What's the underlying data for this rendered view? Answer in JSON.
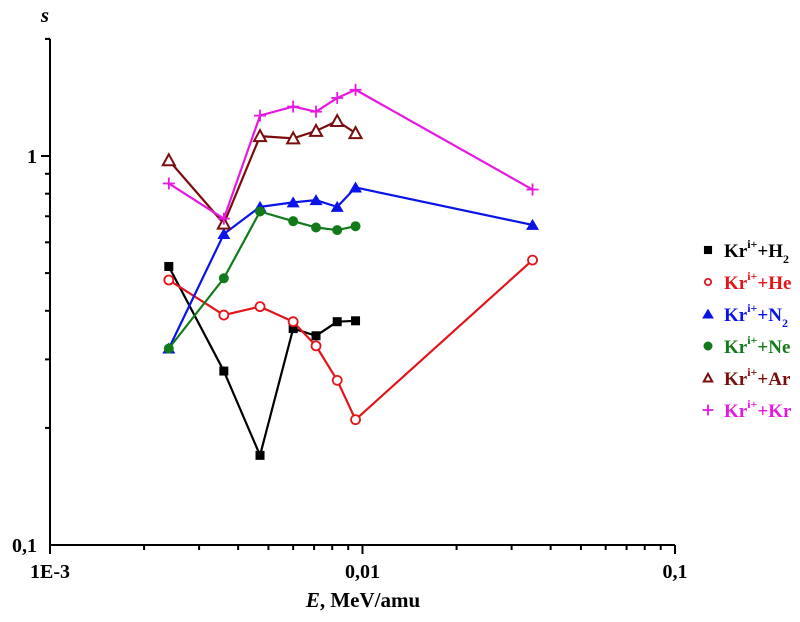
{
  "chart_data": {
    "type": "line",
    "title": "",
    "xlabel_italic": "E",
    "xlabel_rest": ", MeV/amu",
    "ylabel": "s",
    "xscale": "log",
    "yscale": "log",
    "xlim": [
      0.001,
      0.1
    ],
    "ylim": [
      0.1,
      2.0
    ],
    "x_ticks": [
      {
        "value": 0.001,
        "label": "1E-3"
      },
      {
        "value": 0.01,
        "label": "0,01"
      },
      {
        "value": 0.1,
        "label": "0,1"
      }
    ],
    "y_ticks": [
      {
        "value": 0.1,
        "label": "0,1"
      },
      {
        "value": 1,
        "label": "1"
      }
    ],
    "grid": false,
    "legend_position": "right",
    "series": [
      {
        "name": "Kr^i+ + H2",
        "base": "Kr",
        "sup": "i+",
        "rest": "+H",
        "sub": "2",
        "color": "#000000",
        "marker": "square-filled",
        "x": [
          0.0024,
          0.0036,
          0.0047,
          0.006,
          0.0071,
          0.0083,
          0.0095
        ],
        "y": [
          0.52,
          0.28,
          0.17,
          0.36,
          0.345,
          0.375,
          0.377
        ]
      },
      {
        "name": "Kr^i+ + He",
        "base": "Kr",
        "sup": "i+",
        "rest": "+He",
        "sub": "",
        "color": "#e3141a",
        "marker": "circle-open",
        "x": [
          0.0024,
          0.0036,
          0.0047,
          0.006,
          0.0071,
          0.0083,
          0.0095,
          0.035
        ],
        "y": [
          0.48,
          0.39,
          0.41,
          0.375,
          0.325,
          0.265,
          0.21,
          0.54
        ]
      },
      {
        "name": "Kr^i+ + N2",
        "base": "Kr",
        "sup": "i+",
        "rest": "+N",
        "sub": "2",
        "color": "#0a14e6",
        "marker": "triangle-filled",
        "x": [
          0.0024,
          0.0036,
          0.0047,
          0.006,
          0.0071,
          0.0083,
          0.0095,
          0.035
        ],
        "y": [
          0.32,
          0.63,
          0.74,
          0.76,
          0.77,
          0.74,
          0.83,
          0.665
        ]
      },
      {
        "name": "Kr^i+ + Ne",
        "base": "Kr",
        "sup": "i+",
        "rest": "+Ne",
        "sub": "",
        "color": "#127a1a",
        "marker": "circle-filled",
        "x": [
          0.0024,
          0.0036,
          0.0047,
          0.006,
          0.0071,
          0.0083,
          0.0095
        ],
        "y": [
          0.32,
          0.485,
          0.72,
          0.68,
          0.655,
          0.645,
          0.66
        ]
      },
      {
        "name": "Kr^i+ + Ar",
        "base": "Kr",
        "sup": "i+",
        "rest": "+Ar",
        "sub": "",
        "color": "#7a0e0e",
        "marker": "triangle-open",
        "x": [
          0.0024,
          0.0036,
          0.0047,
          0.006,
          0.0071,
          0.0083,
          0.0095
        ],
        "y": [
          0.975,
          0.67,
          1.125,
          1.11,
          1.16,
          1.23,
          1.145
        ]
      },
      {
        "name": "Kr^i+ + Kr",
        "base": "Kr",
        "sup": "i+",
        "rest": "+Kr",
        "sub": "",
        "color": "#e619e0",
        "marker": "plus",
        "x": [
          0.0024,
          0.0036,
          0.0047,
          0.006,
          0.0071,
          0.0083,
          0.0095,
          0.035
        ],
        "y": [
          0.85,
          0.69,
          1.27,
          1.34,
          1.3,
          1.41,
          1.48,
          0.82
        ]
      }
    ]
  }
}
